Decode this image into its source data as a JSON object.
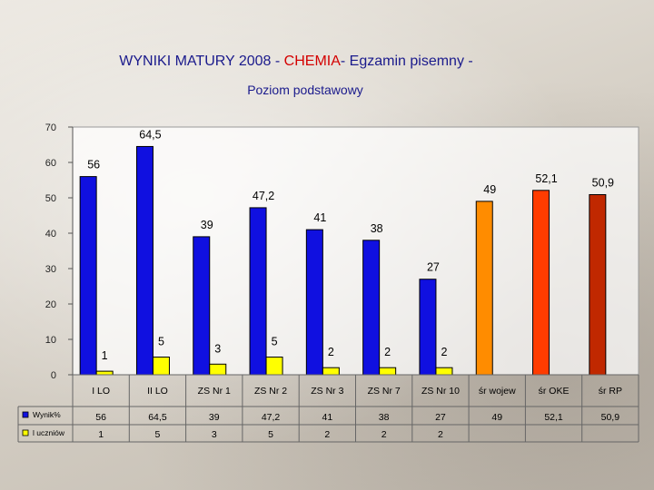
{
  "chart_data": {
    "type": "bar",
    "title_parts": [
      "WYNIKI MATURY 2008 - ",
      "CHEMIA",
      "- Egzamin pisemny -"
    ],
    "subtitle": "Poziom podstawowy",
    "categories": [
      "I LO",
      "II LO",
      "ZS Nr 1",
      "ZS Nr 2",
      "ZS Nr 3",
      "ZS Nr 7",
      "ZS Nr 10",
      "śr wojew",
      "śr OKE",
      "śr RP"
    ],
    "ylim": [
      0,
      70
    ],
    "yticks": [
      "0",
      "10",
      "20",
      "30",
      "40",
      "50",
      "60",
      "70"
    ],
    "grid": false,
    "series": [
      {
        "name": "Wynik%",
        "values": [
          56,
          64.5,
          39,
          47.2,
          41,
          38,
          27,
          49,
          52.1,
          50.9
        ],
        "labels": [
          "56",
          "64,5",
          "39",
          "47,2",
          "41",
          "38",
          "27",
          "49",
          "52,1",
          "50,9"
        ],
        "colors": [
          "#1010e0",
          "#1010e0",
          "#1010e0",
          "#1010e0",
          "#1010e0",
          "#1010e0",
          "#1010e0",
          "#ff8c00",
          "#ff3c00",
          "#c02800"
        ]
      },
      {
        "name": "l uczniów",
        "values": [
          1,
          5,
          3,
          5,
          2,
          2,
          2,
          null,
          null,
          null
        ],
        "labels": [
          "1",
          "5",
          "3",
          "5",
          "2",
          "2",
          "2",
          "",
          "",
          ""
        ],
        "colors": [
          "#ffff00"
        ]
      }
    ],
    "table_rows": [
      [
        "56",
        "64,5",
        "39",
        "47,2",
        "41",
        "38",
        "27",
        "49",
        "52,1",
        "50,9"
      ],
      [
        "1",
        "5",
        "3",
        "5",
        "2",
        "2",
        "2",
        "",
        "",
        ""
      ]
    ],
    "colors": {
      "series1": "#1010e0",
      "series2": "#ffff00",
      "plot_bg": "#ffffff"
    }
  }
}
